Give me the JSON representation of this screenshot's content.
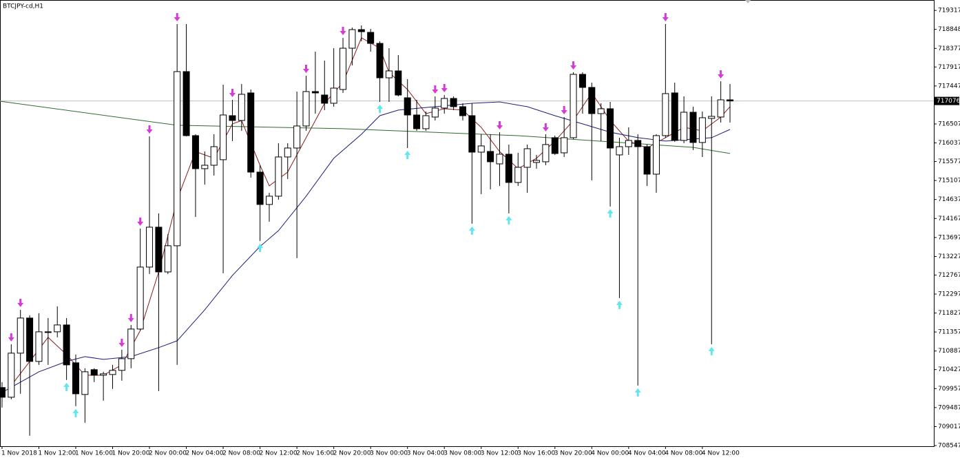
{
  "chart_data": {
    "type": "candlestick",
    "title": "BTCJPY-cd,H1",
    "open": [
      709982,
      709743,
      710834,
      711703,
      710629,
      711345,
      711362,
      711532,
      710595,
      709811,
      710425,
      710288,
      710305,
      710408,
      710697,
      711430,
      712964,
      713952,
      712844,
      713492,
      717803,
      716218,
      715400,
      715485,
      715622,
      716712,
      716593,
      717275,
      715315,
      714514,
      714719,
      715690,
      715911,
      716457,
      717309,
      717223,
      717019,
      717360,
      718382,
      718842,
      718774,
      718501,
      717649,
      717820,
      717155,
      716729,
      716389,
      716678,
      716900,
      717138,
      716934,
      716712,
      715809,
      715826,
      715519,
      715758,
      715059,
      715434,
      715554,
      715571,
      716167,
      715792,
      716167,
      717735,
      717411,
      716763,
      716883,
      715741,
      715945,
      716099,
      715945,
      715264,
      716218,
      717275,
      716099,
      716797,
      716048,
      716644,
      716678,
      717104
    ],
    "high": [
      710118,
      711055,
      711907,
      711771,
      711822,
      711703,
      711992,
      711703,
      710799,
      710459,
      710459,
      710373,
      710544,
      710919,
      711532,
      713918,
      716201,
      714293,
      713781,
      718979,
      718979,
      716252,
      715826,
      716252,
      717479,
      717104,
      717496,
      717360,
      715485,
      714804,
      716031,
      716031,
      717309,
      717701,
      718297,
      718075,
      718382,
      718638,
      718893,
      718945,
      718859,
      718553,
      718382,
      718212,
      717615,
      717104,
      716815,
      717189,
      717223,
      717189,
      717019,
      717019,
      716252,
      716252,
      716303,
      715997,
      715792,
      715997,
      715741,
      716252,
      716218,
      716678,
      717786,
      717786,
      717530,
      717019,
      717053,
      716167,
      716423,
      716252,
      715997,
      716252,
      718979,
      717530,
      717189,
      716934,
      716815,
      717189,
      717564,
      717496
    ],
    "low": [
      709487,
      709692,
      709828,
      708789,
      710544,
      710544,
      711225,
      710169,
      709521,
      709112,
      710118,
      709658,
      709947,
      710152,
      710459,
      711396,
      712793,
      709896,
      712793,
      710544,
      716201,
      714207,
      715008,
      715230,
      712810,
      716082,
      716337,
      715179,
      713611,
      714088,
      714633,
      715145,
      713185,
      716337,
      716763,
      716849,
      716934,
      717275,
      717956,
      718553,
      718297,
      717053,
      717053,
      717189,
      715911,
      716337,
      716337,
      716593,
      716763,
      716849,
      716593,
      714037,
      714770,
      714889,
      714974,
      714293,
      714974,
      714804,
      715400,
      715485,
      715741,
      715690,
      716133,
      716763,
      715111,
      716082,
      714463,
      712197,
      715741,
      710033,
      714974,
      714804,
      716167,
      716065,
      716031,
      715860,
      715690,
      711055,
      716542,
      716542
    ],
    "close": [
      709743,
      710834,
      711703,
      710629,
      711362,
      711362,
      711532,
      710544,
      709828,
      710373,
      710288,
      710322,
      710408,
      710697,
      711430,
      712964,
      713952,
      712844,
      713492,
      717803,
      716218,
      715400,
      715485,
      715945,
      716729,
      716593,
      717241,
      715315,
      714514,
      714719,
      715690,
      715911,
      716457,
      717309,
      717275,
      717019,
      717394,
      718382,
      718842,
      718791,
      718501,
      717649,
      717820,
      717223,
      716729,
      716389,
      716712,
      716900,
      717138,
      716934,
      716712,
      715809,
      715963,
      715571,
      715758,
      715059,
      715434,
      715894,
      715605,
      715997,
      715775,
      716167,
      717735,
      717411,
      716763,
      716883,
      715911,
      715945,
      716099,
      715945,
      715264,
      716218,
      717258,
      716099,
      716797,
      716048,
      716661,
      716695,
      717104,
      717076
    ],
    "xlim": [
      -0.22,
      101.12
    ],
    "xticks": [
      {
        "value": 0,
        "label": "1 Nov 2018"
      },
      {
        "value": 4,
        "label": "1 Nov 12:00"
      },
      {
        "value": 8,
        "label": "1 Nov 16:00"
      },
      {
        "value": 12,
        "label": "1 Nov 20:00"
      },
      {
        "value": 16,
        "label": "2 Nov 00:00"
      },
      {
        "value": 20,
        "label": "2 Nov 04:00"
      },
      {
        "value": 24,
        "label": "2 Nov 08:00"
      },
      {
        "value": 28,
        "label": "2 Nov 12:00"
      },
      {
        "value": 32,
        "label": "2 Nov 16:00"
      },
      {
        "value": 36,
        "label": "2 Nov 20:00"
      },
      {
        "value": 40,
        "label": "3 Nov 00:00"
      },
      {
        "value": 44,
        "label": "3 Nov 04:00"
      },
      {
        "value": 48,
        "label": "3 Nov 08:00"
      },
      {
        "value": 52,
        "label": "3 Nov 12:00"
      },
      {
        "value": 56,
        "label": "3 Nov 16:00"
      },
      {
        "value": 60,
        "label": "3 Nov 20:00"
      },
      {
        "value": 64,
        "label": "4 Nov 00:00"
      },
      {
        "value": 68,
        "label": "4 Nov 04:00"
      },
      {
        "value": 72,
        "label": "4 Nov 08:00"
      },
      {
        "value": 76,
        "label": "4 Nov 12:00"
      }
    ],
    "ylim": [
      708530,
      719575
    ],
    "yticks": [
      719317,
      718848,
      718377,
      717917,
      717447,
      716507,
      716037,
      715577,
      715107,
      714637,
      714167,
      713697,
      713227,
      712767,
      712297,
      711827,
      711357,
      710887,
      710427,
      709957,
      709487,
      709017,
      708547
    ],
    "last_price": 717076,
    "up_color": "#ffffff",
    "down_color": "#000000",
    "indicators": [
      {
        "color": "#8b1a1a",
        "x": [
          1,
          3,
          5,
          7,
          9,
          11,
          13,
          15,
          17,
          19,
          21,
          23,
          25,
          26,
          28,
          29,
          31,
          33,
          35,
          37,
          39,
          41,
          42,
          44,
          46,
          48,
          50,
          52,
          54,
          56,
          58,
          60,
          62,
          64,
          66,
          68,
          70,
          72,
          74,
          76,
          78,
          79
        ],
        "values": [
          710033,
          710629,
          711225,
          710799,
          710288,
          710288,
          710544,
          711396,
          712844,
          714633,
          715826,
          715656,
          716508,
          716593,
          715485,
          714974,
          715315,
          716167,
          717019,
          717530,
          718638,
          718382,
          717786,
          717360,
          716763,
          716883,
          716849,
          716423,
          715826,
          715400,
          715656,
          716082,
          716593,
          717275,
          716593,
          716082,
          715911,
          716167,
          716423,
          716337,
          716678,
          716934
        ]
      },
      {
        "color": "#1c1c7a",
        "x": [
          0,
          4,
          7,
          9,
          11,
          14,
          17,
          19,
          22,
          25,
          28,
          30,
          33,
          36,
          39,
          41,
          43,
          47,
          51,
          54,
          57,
          60,
          63,
          66,
          69,
          72,
          75,
          77,
          79
        ],
        "values": [
          709862,
          710373,
          710629,
          710748,
          710680,
          710748,
          710970,
          711140,
          711907,
          712759,
          713475,
          713867,
          714719,
          715656,
          716252,
          716712,
          716849,
          716934,
          717019,
          717053,
          716934,
          716712,
          716508,
          716303,
          716167,
          716082,
          716133,
          716167,
          716371
        ]
      },
      {
        "color": "#2e6b2e",
        "x": [
          -0.22,
          19,
          37,
          56,
          75,
          79
        ],
        "values": [
          717070,
          716474,
          716389,
          716218,
          715928,
          715775
        ]
      }
    ],
    "down_arrows": [
      1,
      2,
      13,
      14,
      15,
      16,
      19,
      25,
      33,
      37,
      47,
      48,
      54,
      59,
      61,
      62,
      72,
      78
    ],
    "down_arrow_color": "#d63ad6",
    "up_arrows": [
      7,
      8,
      28,
      41,
      44,
      51,
      55,
      66,
      67,
      69,
      77
    ],
    "up_arrow_color": "#5fe6ee"
  }
}
